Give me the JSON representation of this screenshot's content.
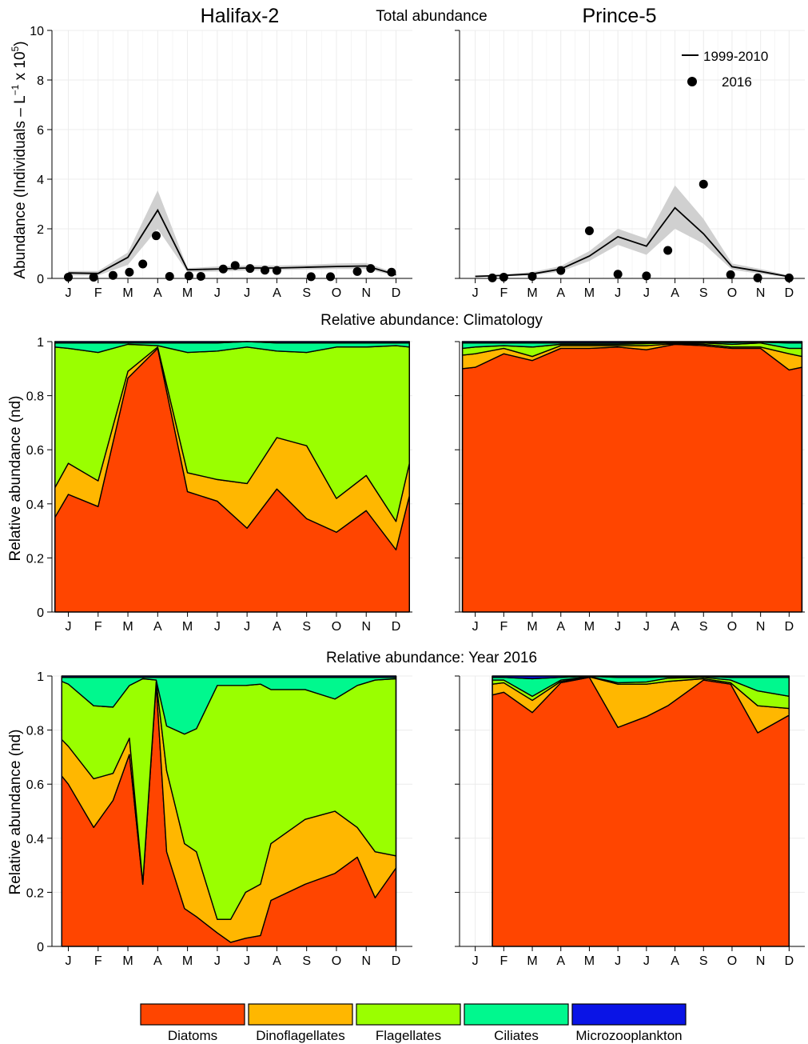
{
  "colors": {
    "Diatoms": "#ff4500",
    "Dinoflagellates": "#ffb700",
    "Flagellates": "#9aff00",
    "Ciliates": "#00f88e",
    "Microzooplankton": "#0a14e6",
    "band": "#d0d0d0",
    "grid": "#ececec"
  },
  "headers": {
    "left_station": "Halifax-2",
    "right_station": "Prince-5",
    "top_title": "Total abundance",
    "mid_title": "Relative abundance: Climatology",
    "bottom_title": "Relative abundance: Year 2016",
    "ylabel_top": "Abundance (Individuals – L",
    "ylabel_top_sup1": "−1",
    "ylabel_top_mid": " x 10",
    "ylabel_top_sup2": "5",
    "ylabel_top_end": ")",
    "ylabel_rel": "Relative abundance (nd)"
  },
  "chart_data": [
    {
      "id": "abs-halifax",
      "type": "line",
      "title": "Halifax-2",
      "ylabel": "Abundance (Individuals – L⁻¹ x 10⁵)",
      "x_ticks": [
        "J",
        "F",
        "M",
        "A",
        "M",
        "J",
        "J",
        "A",
        "S",
        "O",
        "N",
        "D"
      ],
      "y_ticks": [
        0,
        2,
        4,
        6,
        8,
        10
      ],
      "ylim": [
        0,
        10
      ],
      "legend": [
        "1999-2010",
        "2016"
      ],
      "climatology": {
        "name": "1999-2010",
        "x": [
          1,
          2,
          3,
          4,
          5,
          6,
          7,
          8,
          9,
          10,
          11,
          12
        ],
        "mean": [
          0.22,
          0.2,
          0.85,
          2.75,
          0.35,
          0.38,
          0.42,
          0.42,
          0.45,
          0.48,
          0.5,
          0.15
        ],
        "lower": [
          0.12,
          0.12,
          0.55,
          2.0,
          0.25,
          0.28,
          0.32,
          0.34,
          0.36,
          0.38,
          0.38,
          0.1
        ],
        "upper": [
          0.3,
          0.3,
          1.05,
          3.55,
          0.42,
          0.48,
          0.52,
          0.52,
          0.55,
          0.6,
          0.62,
          0.22
        ]
      },
      "observed": {
        "name": "2016",
        "x": [
          1.0,
          1.85,
          2.5,
          3.05,
          3.5,
          3.95,
          4.4,
          5.05,
          5.45,
          6.2,
          6.6,
          7.1,
          7.6,
          8.0,
          9.15,
          9.8,
          10.7,
          11.15,
          11.85
        ],
        "y": [
          0.05,
          0.05,
          0.12,
          0.25,
          0.58,
          1.72,
          0.08,
          0.1,
          0.08,
          0.38,
          0.52,
          0.4,
          0.33,
          0.32,
          0.07,
          0.07,
          0.28,
          0.4,
          0.25
        ]
      }
    },
    {
      "id": "abs-prince",
      "type": "line",
      "title": "Prince-5",
      "x_ticks": [
        "J",
        "F",
        "M",
        "A",
        "M",
        "J",
        "J",
        "A",
        "S",
        "O",
        "N",
        "D"
      ],
      "ylim": [
        0,
        10
      ],
      "legend": [
        "1999-2010",
        "2016"
      ],
      "climatology": {
        "name": "1999-2010",
        "x": [
          1,
          2,
          3,
          4,
          5,
          6,
          7,
          8,
          9,
          10,
          11,
          12
        ],
        "mean": [
          0.08,
          0.12,
          0.18,
          0.38,
          0.9,
          1.68,
          1.3,
          2.85,
          1.8,
          0.47,
          0.28,
          0.07
        ],
        "lower": [
          0.05,
          0.08,
          0.12,
          0.28,
          0.7,
          1.35,
          0.95,
          2.0,
          1.4,
          0.35,
          0.18,
          0.04
        ],
        "upper": [
          0.12,
          0.16,
          0.26,
          0.5,
          1.1,
          2.0,
          1.6,
          3.75,
          2.4,
          0.6,
          0.38,
          0.12
        ]
      },
      "observed": {
        "name": "2016",
        "x": [
          1.6,
          2.0,
          3.0,
          4.0,
          5.0,
          6.0,
          7.0,
          7.75,
          9.0,
          9.95,
          10.9,
          12.0
        ],
        "y": [
          0.02,
          0.05,
          0.08,
          0.32,
          1.92,
          0.17,
          0.1,
          1.13,
          3.8,
          0.15,
          0.02,
          0.02
        ]
      }
    },
    {
      "id": "clim-halifax",
      "type": "area",
      "ylabel": "Relative abundance (nd)",
      "x_ticks": [
        "J",
        "F",
        "M",
        "A",
        "M",
        "J",
        "J",
        "A",
        "S",
        "O",
        "N",
        "D"
      ],
      "y_ticks": [
        0,
        0.2,
        0.4,
        0.6,
        0.8,
        1
      ],
      "ylim": [
        0,
        1
      ],
      "stacked": true,
      "x": [
        0.55,
        1,
        2,
        3,
        4,
        5,
        6,
        7,
        8,
        9,
        10,
        11,
        12,
        12.45
      ],
      "series": [
        {
          "name": "Diatoms",
          "values": [
            0.35,
            0.435,
            0.39,
            0.865,
            0.975,
            0.445,
            0.41,
            0.31,
            0.455,
            0.345,
            0.295,
            0.375,
            0.23,
            0.43
          ]
        },
        {
          "name": "Dinoflagellates",
          "values": [
            0.11,
            0.115,
            0.095,
            0.025,
            0.005,
            0.07,
            0.08,
            0.165,
            0.19,
            0.27,
            0.125,
            0.13,
            0.105,
            0.12
          ]
        },
        {
          "name": "Flagellates",
          "values": [
            0.52,
            0.425,
            0.475,
            0.1,
            0.005,
            0.445,
            0.475,
            0.505,
            0.32,
            0.345,
            0.56,
            0.475,
            0.65,
            0.43
          ]
        },
        {
          "name": "Ciliates",
          "values": [
            0.015,
            0.02,
            0.035,
            0.005,
            0.01,
            0.035,
            0.03,
            0.02,
            0.03,
            0.035,
            0.015,
            0.015,
            0.01,
            0.015
          ]
        },
        {
          "name": "Microzooplankton",
          "values": [
            0.005,
            0.005,
            0.005,
            0.005,
            0.005,
            0.005,
            0.005,
            0,
            0.005,
            0.005,
            0.005,
            0.005,
            0.005,
            0.005
          ]
        }
      ]
    },
    {
      "id": "clim-prince",
      "type": "area",
      "x_ticks": [
        "J",
        "F",
        "M",
        "A",
        "M",
        "J",
        "J",
        "A",
        "S",
        "O",
        "N",
        "D"
      ],
      "ylim": [
        0,
        1
      ],
      "stacked": true,
      "x": [
        0.55,
        1,
        2,
        3,
        4,
        5,
        6,
        7,
        8,
        9,
        10,
        11,
        12,
        12.45
      ],
      "series": [
        {
          "name": "Diatoms",
          "values": [
            0.9,
            0.905,
            0.955,
            0.93,
            0.975,
            0.975,
            0.98,
            0.97,
            0.99,
            0.985,
            0.975,
            0.975,
            0.895,
            0.905
          ]
        },
        {
          "name": "Dinoflagellates",
          "values": [
            0.05,
            0.05,
            0.02,
            0.015,
            0.01,
            0.01,
            0.005,
            0.015,
            0.002,
            0.005,
            0.005,
            0.005,
            0.06,
            0.04
          ]
        },
        {
          "name": "Flagellates",
          "values": [
            0.025,
            0.025,
            0.01,
            0.035,
            0.005,
            0.005,
            0.005,
            0.008,
            0.003,
            0.005,
            0.01,
            0.015,
            0.02,
            0.03
          ]
        },
        {
          "name": "Ciliates",
          "values": [
            0.02,
            0.015,
            0.01,
            0.015,
            0.005,
            0.005,
            0.005,
            0.004,
            0.003,
            0.003,
            0.007,
            0.003,
            0.02,
            0.02
          ]
        },
        {
          "name": "Microzooplankton",
          "values": [
            0.005,
            0.005,
            0.005,
            0.005,
            0.005,
            0.005,
            0.005,
            0.003,
            0.002,
            0.002,
            0.003,
            0.002,
            0.005,
            0.005
          ]
        }
      ]
    },
    {
      "id": "y2016-halifax",
      "type": "area",
      "ylabel": "Relative abundance (nd)",
      "x_ticks": [
        "J",
        "F",
        "M",
        "A",
        "M",
        "J",
        "J",
        "A",
        "S",
        "O",
        "N",
        "D"
      ],
      "y_ticks": [
        0,
        0.2,
        0.4,
        0.6,
        0.8,
        1
      ],
      "ylim": [
        0,
        1
      ],
      "stacked": true,
      "x": [
        0.78,
        1.0,
        1.85,
        2.5,
        3.05,
        3.5,
        3.95,
        4.3,
        4.9,
        5.3,
        6.0,
        6.45,
        6.95,
        7.45,
        7.8,
        8.95,
        9.95,
        10.7,
        11.3,
        12.0
      ],
      "series": [
        {
          "name": "Diatoms",
          "values": [
            0.63,
            0.6,
            0.44,
            0.54,
            0.71,
            0.23,
            0.97,
            0.35,
            0.14,
            0.11,
            0.05,
            0.015,
            0.03,
            0.04,
            0.17,
            0.23,
            0.27,
            0.33,
            0.18,
            0.29
          ]
        },
        {
          "name": "Dinoflagellates",
          "values": [
            0.135,
            0.14,
            0.18,
            0.1,
            0.06,
            0.005,
            0.01,
            0.3,
            0.24,
            0.24,
            0.05,
            0.085,
            0.17,
            0.19,
            0.21,
            0.24,
            0.23,
            0.11,
            0.17,
            0.045
          ]
        },
        {
          "name": "Flagellates",
          "values": [
            0.215,
            0.23,
            0.27,
            0.245,
            0.195,
            0.755,
            0.005,
            0.165,
            0.405,
            0.455,
            0.865,
            0.865,
            0.765,
            0.74,
            0.57,
            0.48,
            0.415,
            0.525,
            0.635,
            0.655
          ]
        },
        {
          "name": "Ciliates",
          "values": [
            0.015,
            0.025,
            0.105,
            0.11,
            0.03,
            0.005,
            0.01,
            0.18,
            0.21,
            0.19,
            0.03,
            0.03,
            0.03,
            0.025,
            0.045,
            0.045,
            0.08,
            0.03,
            0.01,
            0.005
          ]
        },
        {
          "name": "Microzooplankton",
          "values": [
            0.005,
            0.005,
            0.005,
            0.005,
            0.005,
            0.005,
            0.005,
            0.005,
            0.005,
            0.005,
            0.005,
            0.005,
            0.005,
            0.005,
            0.005,
            0.005,
            0.005,
            0.005,
            0.005,
            0.005
          ]
        }
      ]
    },
    {
      "id": "y2016-prince",
      "type": "area",
      "x_ticks": [
        "J",
        "F",
        "M",
        "A",
        "M",
        "J",
        "J",
        "A",
        "S",
        "O",
        "N",
        "D"
      ],
      "ylim": [
        0,
        1
      ],
      "stacked": true,
      "x": [
        1.6,
        2.0,
        3.0,
        4.0,
        5.0,
        6.0,
        7.0,
        7.75,
        9.0,
        9.95,
        10.9,
        12.0
      ],
      "series": [
        {
          "name": "Diatoms",
          "values": [
            0.93,
            0.94,
            0.865,
            0.975,
            0.995,
            0.81,
            0.85,
            0.89,
            0.985,
            0.97,
            0.79,
            0.855
          ]
        },
        {
          "name": "Dinoflagellates",
          "values": [
            0.04,
            0.035,
            0.045,
            0.005,
            0.002,
            0.16,
            0.12,
            0.09,
            0.005,
            0.005,
            0.1,
            0.025
          ]
        },
        {
          "name": "Flagellates",
          "values": [
            0.015,
            0.01,
            0.015,
            0.005,
            0.001,
            0.005,
            0.008,
            0.012,
            0.005,
            0.01,
            0.055,
            0.045
          ]
        },
        {
          "name": "Ciliates",
          "values": [
            0.01,
            0.01,
            0.065,
            0.01,
            0.001,
            0.02,
            0.017,
            0.005,
            0.003,
            0.01,
            0.05,
            0.07
          ]
        },
        {
          "name": "Microzooplankton",
          "values": [
            0.005,
            0.005,
            0.01,
            0.005,
            0.001,
            0.005,
            0.005,
            0.003,
            0.002,
            0.005,
            0.005,
            0.005
          ]
        }
      ]
    }
  ],
  "legend": {
    "items": [
      "Diatoms",
      "Dinoflagellates",
      "Flagellates",
      "Ciliates",
      "Microzooplankton"
    ]
  }
}
